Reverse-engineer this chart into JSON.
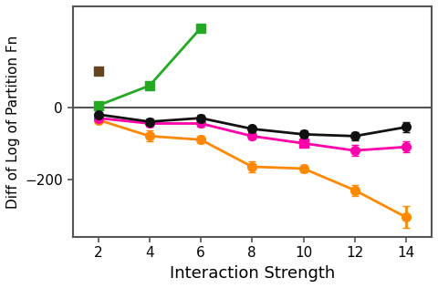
{
  "x": [
    2,
    4,
    6,
    8,
    10,
    12,
    14
  ],
  "black_y": [
    -20,
    -40,
    -30,
    -60,
    -75,
    -80,
    -55
  ],
  "black_yerr": [
    5,
    10,
    8,
    8,
    10,
    12,
    15
  ],
  "magenta_y": [
    -30,
    -45,
    -45,
    -80,
    -100,
    -120,
    -110
  ],
  "magenta_yerr": [
    5,
    8,
    8,
    10,
    10,
    15,
    15
  ],
  "magenta_markers": [
    "o",
    "o",
    "o",
    "o",
    "s",
    "o",
    "o"
  ],
  "orange_y": [
    -35,
    -80,
    -90,
    -165,
    -170,
    -230,
    -305
  ],
  "orange_yerr": [
    8,
    15,
    10,
    15,
    10,
    15,
    30
  ],
  "green_x": [
    2,
    4,
    6
  ],
  "green_y": [
    5,
    60,
    220
  ],
  "brown_x": [
    2
  ],
  "brown_y": [
    100
  ],
  "black_color": "#111111",
  "magenta_color": "#ff00aa",
  "orange_color": "#ff8800",
  "green_color": "#22aa22",
  "brown_color": "#664422",
  "xlabel": "Interaction Strength",
  "ylabel": "Diff of Log of Partition Fn",
  "ylim": [
    -360,
    280
  ],
  "xlim": [
    1,
    15
  ],
  "xticks": [
    2,
    4,
    6,
    8,
    10,
    12,
    14
  ],
  "yticks": [
    0,
    -200
  ],
  "hline_y": 0,
  "hline_color": "#555555",
  "linewidth": 2.0,
  "markersize": 7
}
